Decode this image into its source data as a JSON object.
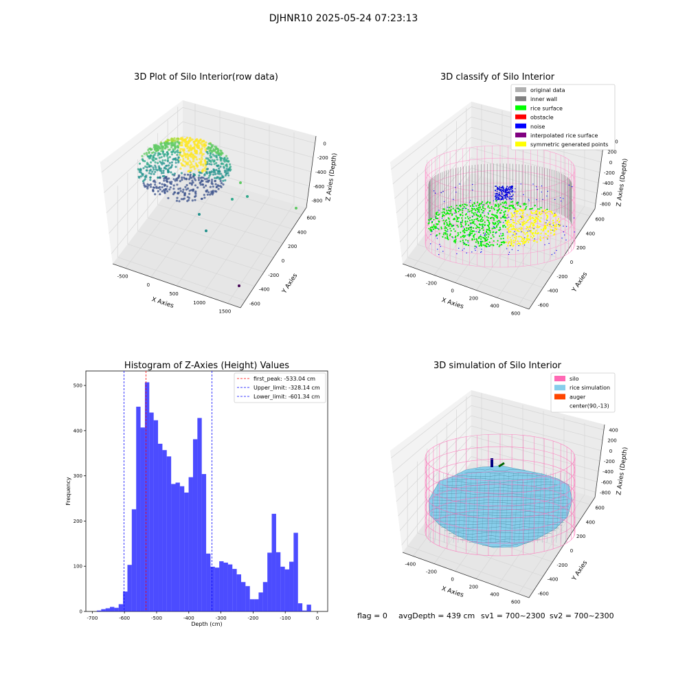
{
  "suptitle": "DJHNR10 2025-05-24 07:23:13",
  "footer": {
    "flag": "flag = 0",
    "avg_depth": "avgDepth = 439 cm",
    "sv1": "sv1 = 700~2300",
    "sv2": "sv2 = 700~2300"
  },
  "chart_data": [
    {
      "type": "scatter",
      "panel": "top-left",
      "title": "3D Plot of Silo Interior(row data)",
      "xlabel": "X Axies",
      "ylabel": "Y Axies",
      "zlabel": "Z Axies (Depth)",
      "x_ticks": [
        "-500",
        "0",
        "500",
        "1000",
        "1500"
      ],
      "y_ticks": [
        "-600",
        "-400",
        "-200",
        "0",
        "200",
        "400",
        "600"
      ],
      "z_ticks": [
        "0",
        "-200",
        "-400",
        "-600",
        "-800"
      ],
      "colormap": "viridis",
      "outliers": [
        {
          "x": 1600,
          "y": -600,
          "z": -900
        },
        {
          "x": 700,
          "y": 600,
          "z": -650
        },
        {
          "x": 600,
          "y": 300,
          "z": -500
        }
      ]
    },
    {
      "type": "scatter",
      "panel": "top-right",
      "title": "3D classify of Silo Interior",
      "xlabel": "X Axies",
      "ylabel": "Y Axies",
      "zlabel": "Z Axies (Depth)",
      "x_ticks": [
        "-400",
        "-200",
        "0",
        "200",
        "400",
        "600"
      ],
      "y_ticks": [
        "-600",
        "-400",
        "-200",
        "0",
        "200",
        "400",
        "600"
      ],
      "z_ticks": [
        "400",
        "200",
        "0",
        "-200",
        "-400",
        "-600",
        "-800"
      ],
      "legend": [
        {
          "label": "original data",
          "color": "#b0b0b0"
        },
        {
          "label": "inner wall",
          "color": "#808080"
        },
        {
          "label": "rice surface",
          "color": "#00ff00"
        },
        {
          "label": "obstacle",
          "color": "#ff0000"
        },
        {
          "label": "noise",
          "color": "#0000ff"
        },
        {
          "label": "interpolated rice surface",
          "color": "#800080"
        },
        {
          "label": "symmetric generated points",
          "color": "#ffff00"
        }
      ]
    },
    {
      "type": "bar",
      "panel": "bottom-left",
      "title": "Histogram of Z-Axies (Height) Values",
      "xlabel": "Depth (cm)",
      "ylabel": "Frequency",
      "xlim": [
        -720,
        32
      ],
      "ylim": [
        0,
        532
      ],
      "x_ticks": [
        -700,
        -600,
        -500,
        -400,
        -300,
        -200,
        -100,
        0
      ],
      "y_ticks": [
        0,
        100,
        200,
        300,
        400,
        500
      ],
      "bar_color": "#0000ff",
      "bin_start": -686,
      "bin_width": 13.6,
      "values": [
        2,
        5,
        7,
        10,
        8,
        16,
        44,
        103,
        226,
        453,
        407,
        507,
        440,
        423,
        371,
        357,
        343,
        282,
        285,
        277,
        263,
        297,
        381,
        428,
        304,
        128,
        99,
        97,
        111,
        108,
        104,
        94,
        82,
        65,
        56,
        27,
        27,
        42,
        65,
        130,
        216,
        131,
        99,
        93,
        110,
        174,
        18,
        2,
        15
      ],
      "reference_lines": [
        {
          "label": "first_peak: -533.04 cm",
          "value": -533.04,
          "color": "#ff0000"
        },
        {
          "label": "Upper_limit: -328.14 cm",
          "value": -328.14,
          "color": "#0000ff"
        },
        {
          "label": "Lower_limit: -601.34 cm",
          "value": -601.34,
          "color": "#0000ff"
        }
      ],
      "legend_position": "top-right"
    },
    {
      "type": "surface",
      "panel": "bottom-right",
      "title": "3D simulation of Silo Interior",
      "xlabel": "X Axies",
      "ylabel": "Y Axies",
      "zlabel": "Z Axies (Depth)",
      "x_ticks": [
        "-400",
        "-200",
        "0",
        "200",
        "400",
        "600"
      ],
      "y_ticks": [
        "-600",
        "-400",
        "-200",
        "0",
        "200",
        "400",
        "600"
      ],
      "z_ticks": [
        "400",
        "200",
        "0",
        "-200",
        "-400",
        "-600",
        "-800"
      ],
      "legend": [
        {
          "label": "silo",
          "color": "#ff69b4"
        },
        {
          "label": "rice simulation",
          "color": "#87ceeb"
        },
        {
          "label": "auger",
          "color": "#ff4500"
        },
        {
          "label": "center(90,-13)",
          "color": ""
        }
      ]
    }
  ]
}
